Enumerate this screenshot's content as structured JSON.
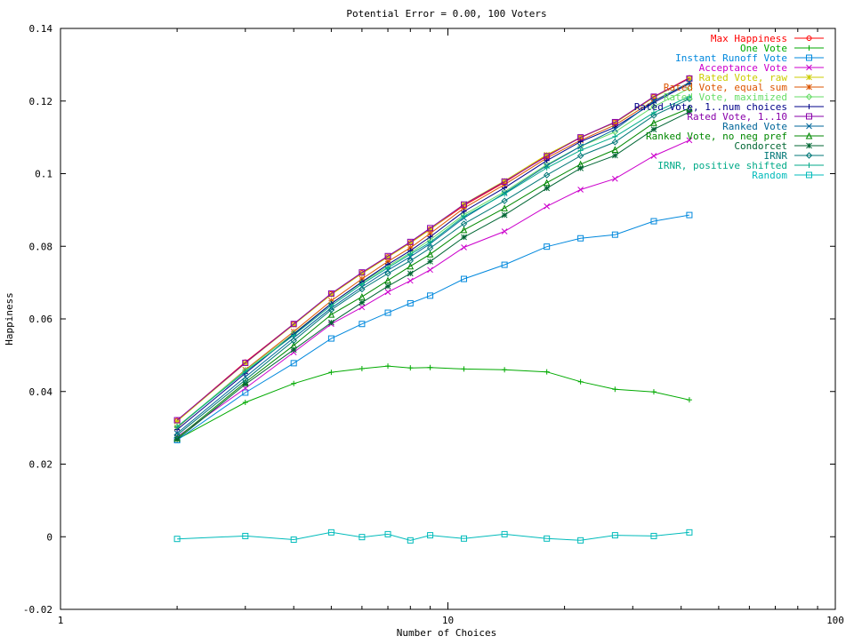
{
  "chart_data": {
    "type": "line",
    "title": "Potential Error = 0.00, 100 Voters",
    "xlabel": "Number of Choices",
    "ylabel": "Happiness",
    "xscale": "log",
    "xlim": [
      1,
      100
    ],
    "ylim": [
      -0.02,
      0.14
    ],
    "x_ticks": [
      1,
      10,
      100
    ],
    "x_tick_labels": [
      "1",
      "10",
      "100"
    ],
    "y_ticks": [
      -0.02,
      0,
      0.02,
      0.04,
      0.06,
      0.08,
      0.1,
      0.12,
      0.14
    ],
    "y_tick_labels": [
      "-0.02",
      "0",
      "0.02",
      "0.04",
      "0.06",
      "0.08",
      "0.1",
      "0.12",
      "0.14"
    ],
    "grid": false,
    "legend_position": "top-right",
    "x": [
      2,
      3,
      4,
      5,
      6,
      7,
      8,
      9,
      11,
      14,
      18,
      22,
      27,
      34,
      42
    ],
    "series": [
      {
        "name": "Max Happiness",
        "color": "#ff0000",
        "marker": "circle",
        "values": [
          0.032,
          0.0481,
          0.0586,
          0.0669,
          0.0727,
          0.0771,
          0.081,
          0.0847,
          0.0912,
          0.0976,
          0.105,
          0.1099,
          0.1142,
          0.1212,
          0.1264
        ]
      },
      {
        "name": "One Vote",
        "color": "#00aa00",
        "marker": "plus",
        "values": [
          0.0268,
          0.037,
          0.0422,
          0.0453,
          0.0463,
          0.047,
          0.0465,
          0.0466,
          0.0462,
          0.046,
          0.0454,
          0.0427,
          0.0406,
          0.0399,
          0.0377
        ]
      },
      {
        "name": "Instant Runoff Vote",
        "color": "#0088dd",
        "marker": "square",
        "values": [
          0.0266,
          0.0397,
          0.0478,
          0.0546,
          0.0586,
          0.0617,
          0.0643,
          0.0664,
          0.071,
          0.0749,
          0.0799,
          0.0822,
          0.0832,
          0.0869,
          0.0886
        ]
      },
      {
        "name": "Acceptance Vote",
        "color": "#cc00cc",
        "marker": "x",
        "values": [
          0.0275,
          0.0409,
          0.0508,
          0.0586,
          0.0632,
          0.0674,
          0.0705,
          0.0735,
          0.0797,
          0.0841,
          0.091,
          0.0956,
          0.0986,
          0.1049,
          0.1092
        ]
      },
      {
        "name": "Rated Vote, raw",
        "color": "#cccc00",
        "marker": "star",
        "values": [
          0.0318,
          0.0478,
          0.0584,
          0.0667,
          0.0725,
          0.077,
          0.0809,
          0.0846,
          0.0916,
          0.098,
          0.1052,
          0.11,
          0.114,
          0.121,
          0.1262
        ]
      },
      {
        "name": "Rated Vote, equal sum",
        "color": "#dd5500",
        "marker": "star",
        "values": [
          0.03,
          0.046,
          0.0565,
          0.065,
          0.071,
          0.0758,
          0.0796,
          0.0835,
          0.0905,
          0.097,
          0.1043,
          0.1092,
          0.1134,
          0.1201,
          0.125
        ]
      },
      {
        "name": "Rated Vote, maximized",
        "color": "#66dd66",
        "marker": "diamond",
        "values": [
          0.0303,
          0.0458,
          0.056,
          0.0642,
          0.07,
          0.0745,
          0.0782,
          0.0818,
          0.0887,
          0.095,
          0.1025,
          0.1075,
          0.1115,
          0.1185,
          0.1235
        ]
      },
      {
        "name": "Rated Vote, 1..num choices",
        "color": "#000088",
        "marker": "plus",
        "values": [
          0.0295,
          0.045,
          0.0558,
          0.0642,
          0.0702,
          0.075,
          0.0788,
          0.0826,
          0.0896,
          0.0961,
          0.1036,
          0.1088,
          0.1128,
          0.1196,
          0.1248
        ]
      },
      {
        "name": "Rated Vote, 1..10",
        "color": "#8800aa",
        "marker": "square",
        "values": [
          0.0321,
          0.0479,
          0.0586,
          0.067,
          0.0728,
          0.0773,
          0.0812,
          0.085,
          0.0915,
          0.0978,
          0.1048,
          0.11,
          0.1142,
          0.1212,
          0.1262
        ]
      },
      {
        "name": "Ranked Vote",
        "color": "#006699",
        "marker": "x",
        "values": [
          0.0285,
          0.044,
          0.0548,
          0.063,
          0.0688,
          0.0734,
          0.0771,
          0.0807,
          0.0878,
          0.0946,
          0.1022,
          0.1075,
          0.1122,
          0.12,
          0.1251
        ]
      },
      {
        "name": "Ranked Vote, no neg pref",
        "color": "#008800",
        "marker": "triangle",
        "values": [
          0.0272,
          0.0425,
          0.0527,
          0.0612,
          0.0661,
          0.0706,
          0.0745,
          0.0778,
          0.0845,
          0.0905,
          0.0975,
          0.1026,
          0.1066,
          0.114,
          0.118
        ]
      },
      {
        "name": "Condorcet",
        "color": "#006633",
        "marker": "star",
        "values": [
          0.0268,
          0.042,
          0.0515,
          0.059,
          0.0645,
          0.069,
          0.0725,
          0.0758,
          0.0825,
          0.0886,
          0.096,
          0.1015,
          0.105,
          0.1122,
          0.117
        ]
      },
      {
        "name": "IRNR",
        "color": "#007777",
        "marker": "diamond",
        "values": [
          0.028,
          0.0432,
          0.054,
          0.0625,
          0.0682,
          0.0725,
          0.076,
          0.0795,
          0.0862,
          0.0925,
          0.0996,
          0.1049,
          0.1087,
          0.116,
          0.1206
        ]
      },
      {
        "name": "IRNR, positive shifted",
        "color": "#00aa88",
        "marker": "plus",
        "values": [
          0.0302,
          0.0455,
          0.0555,
          0.0637,
          0.0696,
          0.0741,
          0.0778,
          0.0811,
          0.0882,
          0.0944,
          0.1016,
          0.1064,
          0.1102,
          0.1168,
          0.1212
        ]
      },
      {
        "name": "Random",
        "color": "#00bbbb",
        "marker": "square",
        "values": [
          -0.0006,
          0.0002,
          -0.0008,
          0.0012,
          -0.0001,
          0.0007,
          -0.001,
          0.0004,
          -0.0005,
          0.0007,
          -0.0005,
          -0.001,
          0.0004,
          0.0002,
          0.0012
        ]
      }
    ]
  }
}
